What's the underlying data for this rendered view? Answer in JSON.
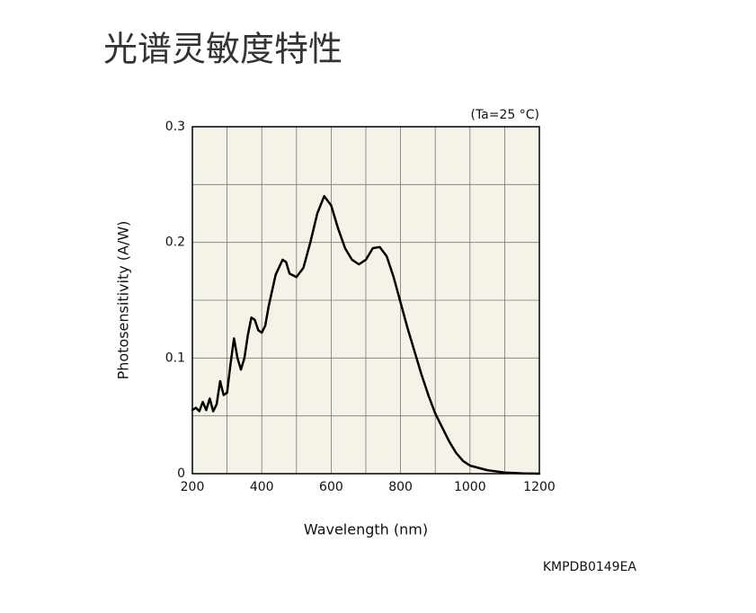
{
  "chart_data": {
    "type": "line",
    "title": "光谱灵敏度特性",
    "annotation": "(Ta=25 °C)",
    "code": "KMPDB0149EA",
    "xlabel": "Wavelength (nm)",
    "ylabel": "Photosensitivity (A/W)",
    "xlim": [
      200,
      1200
    ],
    "ylim": [
      0,
      0.3
    ],
    "xticks": [
      200,
      400,
      600,
      800,
      1000,
      1200
    ],
    "yticks": [
      0,
      0.1,
      0.2,
      0.3
    ],
    "xminor": [
      300,
      500,
      700,
      900,
      1100
    ],
    "yminor": [
      0.05,
      0.15,
      0.25
    ],
    "grid": true,
    "background": "#f5f3e8",
    "x": [
      200,
      210,
      220,
      230,
      240,
      250,
      260,
      270,
      280,
      290,
      300,
      310,
      320,
      330,
      340,
      350,
      360,
      370,
      380,
      390,
      400,
      410,
      420,
      440,
      460,
      470,
      480,
      500,
      520,
      540,
      560,
      580,
      600,
      620,
      640,
      660,
      680,
      700,
      720,
      740,
      760,
      780,
      800,
      820,
      840,
      860,
      880,
      900,
      920,
      940,
      960,
      980,
      1000,
      1050,
      1100,
      1150,
      1200
    ],
    "series": [
      {
        "name": "Photosensitivity",
        "color": "#000000",
        "values": [
          0.055,
          0.057,
          0.054,
          0.062,
          0.055,
          0.065,
          0.054,
          0.06,
          0.08,
          0.068,
          0.07,
          0.095,
          0.117,
          0.1,
          0.09,
          0.1,
          0.12,
          0.135,
          0.133,
          0.124,
          0.122,
          0.128,
          0.145,
          0.172,
          0.185,
          0.183,
          0.173,
          0.17,
          0.178,
          0.2,
          0.225,
          0.24,
          0.232,
          0.212,
          0.195,
          0.185,
          0.181,
          0.185,
          0.195,
          0.196,
          0.188,
          0.17,
          0.148,
          0.126,
          0.106,
          0.086,
          0.068,
          0.052,
          0.04,
          0.028,
          0.018,
          0.011,
          0.007,
          0.003,
          0.001,
          0.0003,
          0
        ]
      }
    ]
  }
}
